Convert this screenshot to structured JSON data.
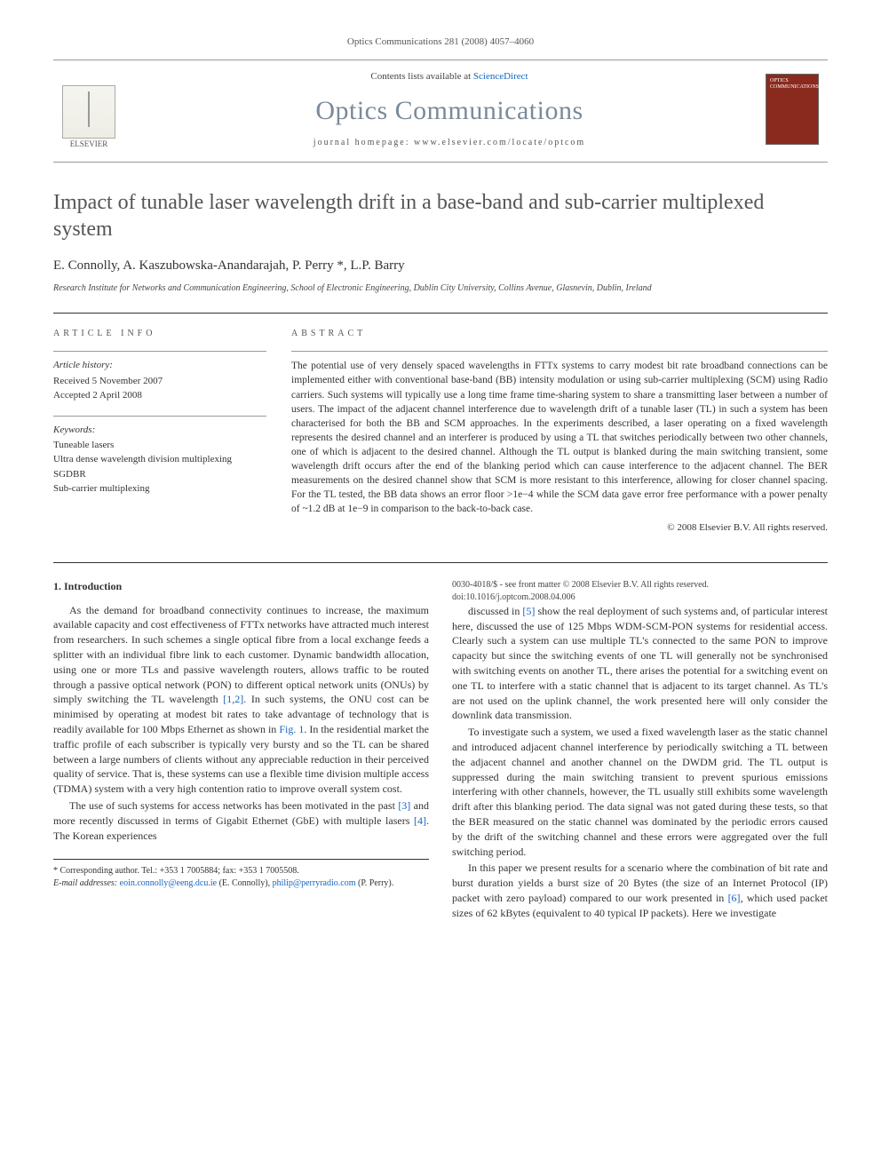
{
  "meta": {
    "citation": "Optics Communications 281 (2008) 4057–4060",
    "contents_prefix": "Contents lists available at ",
    "contents_link": "ScienceDirect",
    "journal": "Optics Communications",
    "homepage_label": "journal homepage: ",
    "homepage_url": "www.elsevier.com/locate/optcom",
    "publisher": "ELSEVIER",
    "cover_text": "OPTICS COMMUNICATIONS"
  },
  "article": {
    "title": "Impact of tunable laser wavelength drift in a base-band and sub-carrier multiplexed system",
    "authors": "E. Connolly, A. Kaszubowska-Anandarajah, P. Perry *, L.P. Barry",
    "affiliation": "Research Institute for Networks and Communication Engineering, School of Electronic Engineering, Dublin City University, Collins Avenue, Glasnevin, Dublin, Ireland"
  },
  "info": {
    "heading": "ARTICLE INFO",
    "history_label": "Article history:",
    "received": "Received 5 November 2007",
    "accepted": "Accepted 2 April 2008",
    "keywords_label": "Keywords:",
    "keywords": [
      "Tuneable lasers",
      "Ultra dense wavelength division multiplexing",
      "SGDBR",
      "Sub-carrier multiplexing"
    ]
  },
  "abstract": {
    "heading": "ABSTRACT",
    "text": "The potential use of very densely spaced wavelengths in FTTx systems to carry modest bit rate broadband connections can be implemented either with conventional base-band (BB) intensity modulation or using sub-carrier multiplexing (SCM) using Radio carriers. Such systems will typically use a long time frame time-sharing system to share a transmitting laser between a number of users. The impact of the adjacent channel interference due to wavelength drift of a tunable laser (TL) in such a system has been characterised for both the BB and SCM approaches. In the experiments described, a laser operating on a fixed wavelength represents the desired channel and an interferer is produced by using a TL that switches periodically between two other channels, one of which is adjacent to the desired channel. Although the TL output is blanked during the main switching transient, some wavelength drift occurs after the end of the blanking period which can cause interference to the adjacent channel. The BER measurements on the desired channel show that SCM is more resistant to this interference, allowing for closer channel spacing. For the TL tested, the BB data shows an error floor >1e−4 while the SCM data gave error free performance with a power penalty of ~1.2 dB at 1e−9 in comparison to the back-to-back case.",
    "copyright": "© 2008 Elsevier B.V. All rights reserved."
  },
  "body": {
    "section1_heading": "1. Introduction",
    "p1": "As the demand for broadband connectivity continues to increase, the maximum available capacity and cost effectiveness of FTTx networks have attracted much interest from researchers. In such schemes a single optical fibre from a local exchange feeds a splitter with an individual fibre link to each customer. Dynamic bandwidth allocation, using one or more TLs and passive wavelength routers, allows traffic to be routed through a passive optical network (PON) to different optical network units (ONUs) by simply switching the TL wavelength [1,2]. In such systems, the ONU cost can be minimised by operating at modest bit rates to take advantage of technology that is readily available for 100 Mbps Ethernet as shown in Fig. 1. In the residential market the traffic profile of each subscriber is typically very bursty and so the TL can be shared between a large numbers of clients without any appreciable reduction in their perceived quality of service. That is, these systems can use a flexible time division multiple access (TDMA) system with a very high contention ratio to improve overall system cost.",
    "p2": "The use of such systems for access networks has been motivated in the past [3] and more recently discussed in terms of Gigabit Ethernet (GbE) with multiple lasers [4]. The Korean experiences",
    "p3": "discussed in [5] show the real deployment of such systems and, of particular interest here, discussed the use of 125 Mbps WDM-SCM-PON systems for residential access. Clearly such a system can use multiple TL's connected to the same PON to improve capacity but since the switching events of one TL will generally not be synchronised with switching events on another TL, there arises the potential for a switching event on one TL to interfere with a static channel that is adjacent to its target channel. As TL's are not used on the uplink channel, the work presented here will only consider the downlink data transmission.",
    "p4": "To investigate such a system, we used a fixed wavelength laser as the static channel and introduced adjacent channel interference by periodically switching a TL between the adjacent channel and another channel on the DWDM grid. The TL output is suppressed during the main switching transient to prevent spurious emissions interfering with other channels, however, the TL usually still exhibits some wavelength drift after this blanking period. The data signal was not gated during these tests, so that the BER measured on the static channel was dominated by the periodic errors caused by the drift of the switching channel and these errors were aggregated over the full switching period.",
    "p5": "In this paper we present results for a scenario where the combination of bit rate and burst duration yields a burst size of 20 Bytes (the size of an Internet Protocol (IP) packet with zero payload) compared to our work presented in [6], which used packet sizes of 62 kBytes (equivalent to 40 typical IP packets). Here we investigate"
  },
  "footnotes": {
    "corr": "* Corresponding author. Tel.: +353 1 7005884; fax: +353 1 7005508.",
    "email_label": "E-mail addresses: ",
    "email1": "eoin.connolly@eeng.dcu.ie",
    "email1_who": " (E. Connolly), ",
    "email2": "philip@perryradio.com",
    "email2_who": " (P. Perry)."
  },
  "footer": {
    "line1": "0030-4018/$ - see front matter © 2008 Elsevier B.V. All rights reserved.",
    "line2": "doi:10.1016/j.optcom.2008.04.006"
  },
  "refs": {
    "r12": "[1,2]",
    "fig1": "Fig. 1",
    "r3": "[3]",
    "r4": "[4]",
    "r5": "[5]",
    "r6": "[6]"
  }
}
